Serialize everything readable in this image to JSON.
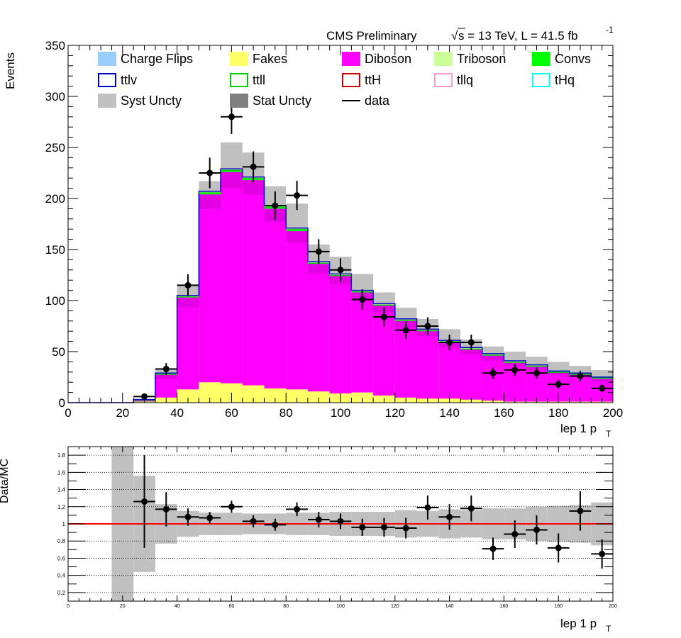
{
  "header": {
    "left": "CMS Preliminary",
    "sqrt_symbol": "√",
    "right_main": "s = 13 TeV, L = 41.5 fb",
    "right_sup": "-1"
  },
  "legend": [
    {
      "label": "Charge Flips",
      "style": "fill",
      "color": "#99ccff"
    },
    {
      "label": "Fakes",
      "style": "fill",
      "color": "#ffff66"
    },
    {
      "label": "Diboson",
      "style": "fill",
      "color": "#ff00ff"
    },
    {
      "label": "Triboson",
      "style": "fill",
      "color": "#ccff99"
    },
    {
      "label": "Convs",
      "style": "fill",
      "color": "#00ff00"
    },
    {
      "label": "ttlv",
      "style": "box",
      "color": "#0000cc"
    },
    {
      "label": "ttll",
      "style": "box",
      "color": "#00cc00"
    },
    {
      "label": "ttH",
      "style": "box",
      "color": "#cc0000"
    },
    {
      "label": "tllq",
      "style": "box",
      "color": "#ff99cc"
    },
    {
      "label": "tHq",
      "style": "box",
      "color": "#00ffff"
    },
    {
      "label": "Syst Uncty",
      "style": "fill",
      "color": "#c0c0c0"
    },
    {
      "label": "Stat Uncty",
      "style": "fill",
      "color": "#808080"
    },
    {
      "label": "data",
      "style": "line",
      "color": "#000000"
    }
  ],
  "colors": {
    "fakes": "#ffff66",
    "diboson": "#ff00ff",
    "diboson_stat": "#cc00cc",
    "triboson": "#ccff99",
    "convs": "#00ff00",
    "outline": "#0000cc",
    "syst": "#c0c0c0",
    "ratio_line": "#ff0000"
  },
  "chart_data": [
    {
      "type": "bar",
      "subtype": "stacked-histogram",
      "xlabel": "lep 1 p",
      "xlabel_sub": "T",
      "ylabel": "Events",
      "xlim": [
        0,
        200
      ],
      "ylim": [
        0,
        350
      ],
      "x_ticks": [
        "0",
        "20",
        "40",
        "60",
        "80",
        "100",
        "120",
        "140",
        "160",
        "180",
        "200"
      ],
      "y_ticks": [
        "0",
        "50",
        "100",
        "150",
        "200",
        "250",
        "300",
        "350"
      ],
      "bin_edges": [
        0,
        8,
        16,
        24,
        32,
        40,
        48,
        56,
        64,
        72,
        80,
        88,
        96,
        104,
        112,
        120,
        128,
        136,
        144,
        152,
        160,
        168,
        176,
        184,
        192,
        200
      ],
      "series": [
        {
          "name": "Fakes",
          "values": [
            0,
            0,
            0,
            1,
            5,
            13,
            20,
            19,
            17,
            14,
            13,
            11,
            9,
            10,
            7,
            5,
            4,
            4,
            3,
            2,
            1,
            1,
            1,
            1,
            1
          ]
        },
        {
          "name": "Diboson",
          "values": [
            0,
            0,
            0,
            2,
            23,
            90,
            184,
            207,
            201,
            176,
            155,
            125,
            115,
            98,
            88,
            75,
            66,
            55,
            49,
            44,
            38,
            34,
            29,
            27,
            23
          ]
        },
        {
          "name": "Convs",
          "values": [
            0,
            0,
            0,
            0,
            1,
            1,
            2,
            2,
            2,
            2,
            2,
            1,
            1,
            1,
            1,
            1,
            1,
            1,
            1,
            1,
            1,
            1,
            1,
            1,
            1
          ]
        },
        {
          "name": "Triboson",
          "values": [
            0,
            0,
            0,
            0,
            0,
            1,
            1,
            1,
            1,
            1,
            1,
            1,
            1,
            1,
            1,
            1,
            1,
            1,
            1,
            1,
            1,
            1,
            0,
            0,
            0
          ]
        }
      ],
      "stat_unc": [
        0,
        0,
        0,
        0.5,
        3,
        6,
        9,
        10,
        9,
        8,
        7,
        6,
        5,
        5,
        4,
        4,
        3,
        3,
        3,
        3,
        2,
        2,
        2,
        2,
        2
      ],
      "syst_up": [
        0,
        0,
        0,
        3,
        33,
        115,
        217,
        255,
        245,
        212,
        195,
        155,
        143,
        126,
        108,
        93,
        82,
        72,
        62,
        55,
        50,
        45,
        40,
        36,
        32
      ],
      "data": {
        "name": "data",
        "x": [
          28,
          36,
          44,
          52,
          60,
          68,
          76,
          84,
          92,
          100,
          108,
          116,
          124,
          132,
          140,
          148,
          156,
          164,
          172,
          180,
          188,
          196
        ],
        "y": [
          6,
          33,
          115,
          225,
          280,
          231,
          193,
          203,
          148,
          130,
          101,
          84,
          71,
          75,
          59,
          59,
          29,
          32,
          29,
          18,
          26,
          14
        ],
        "xerr": 4
      }
    },
    {
      "type": "scatter",
      "subtype": "ratio",
      "xlabel": "lep 1 p",
      "xlabel_sub": "T",
      "ylabel": "Data/MC",
      "xlim": [
        0,
        200
      ],
      "ylim": [
        0.1,
        1.9
      ],
      "x_ticks": [
        "0",
        "20",
        "40",
        "60",
        "80",
        "100",
        "120",
        "140",
        "160",
        "180",
        "200"
      ],
      "y_ticks": [
        "0.2",
        "0.4",
        "0.6",
        "0.8",
        "1",
        "1.2",
        "1.4",
        "1.6",
        "1.8"
      ],
      "reference": 1,
      "band": {
        "bin_edges": [
          16,
          24,
          32,
          40,
          48,
          56,
          64,
          72,
          80,
          88,
          96,
          104,
          112,
          120,
          128,
          136,
          144,
          152,
          160,
          168,
          176,
          184,
          192,
          200
        ],
        "low": [
          0.1,
          0.44,
          0.77,
          0.85,
          0.87,
          0.87,
          0.88,
          0.88,
          0.87,
          0.87,
          0.86,
          0.86,
          0.86,
          0.84,
          0.85,
          0.83,
          0.84,
          0.82,
          0.82,
          0.8,
          0.79,
          0.78,
          0.75
        ],
        "high": [
          1.9,
          1.56,
          1.23,
          1.15,
          1.13,
          1.13,
          1.12,
          1.12,
          1.13,
          1.13,
          1.14,
          1.14,
          1.14,
          1.16,
          1.15,
          1.17,
          1.16,
          1.18,
          1.18,
          1.2,
          1.21,
          1.22,
          1.25
        ]
      },
      "points": {
        "x": [
          28,
          36,
          44,
          52,
          60,
          68,
          76,
          84,
          92,
          100,
          108,
          116,
          124,
          132,
          140,
          148,
          156,
          164,
          172,
          180,
          188,
          196
        ],
        "y": [
          1.26,
          1.17,
          1.08,
          1.07,
          1.2,
          1.03,
          0.99,
          1.17,
          1.05,
          1.03,
          0.96,
          0.96,
          0.95,
          1.19,
          1.08,
          1.18,
          0.71,
          0.88,
          0.93,
          0.72,
          1.15,
          0.65
        ],
        "yerr": [
          0.54,
          0.2,
          0.1,
          0.07,
          0.07,
          0.07,
          0.07,
          0.08,
          0.09,
          0.09,
          0.1,
          0.11,
          0.12,
          0.14,
          0.15,
          0.15,
          0.13,
          0.16,
          0.17,
          0.17,
          0.23,
          0.17
        ],
        "xerr": 4
      }
    }
  ]
}
